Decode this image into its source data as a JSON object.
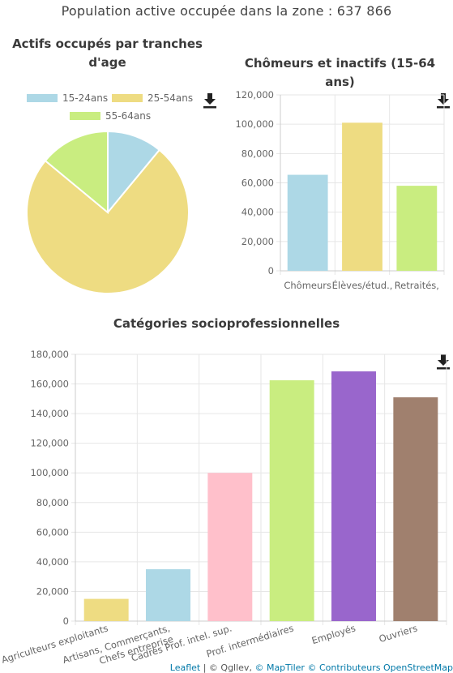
{
  "header": {
    "title": "Population active occupée dans la zone : 637 866"
  },
  "chart_data": [
    {
      "type": "pie",
      "title_line1": "Actifs occupés par tranches",
      "title_line2": "d'age",
      "categories": [
        "15-24ans",
        "25-54ans",
        "55-64ans"
      ],
      "values": [
        0.11,
        0.75,
        0.14
      ],
      "colors": [
        "#add8e6",
        "#eedc82",
        "#c9ed80"
      ],
      "legend_position": "top"
    },
    {
      "type": "bar",
      "title": "Chômeurs et inactifs (15-64 ans)",
      "categories": [
        "Chômeurs",
        "Élèves/étud.,",
        "Retraités,"
      ],
      "values": [
        65500,
        101000,
        58000
      ],
      "colors": [
        "#add8e6",
        "#eedc82",
        "#c9ed80"
      ],
      "ylim": [
        0,
        120000
      ],
      "yticks": [
        "0",
        "20,000",
        "40,000",
        "60,000",
        "80,000",
        "100,000",
        "120,000"
      ],
      "grid": true
    },
    {
      "type": "bar",
      "title": "Catégories socioprofessionnelles",
      "categories": [
        [
          "Agriculteurs exploitants"
        ],
        [
          "Artisans, Commerçants,",
          "Chefs entreprise"
        ],
        [
          "Cadres Prof. intel. sup."
        ],
        [
          "Prof. intermédiaires"
        ],
        [
          "Employés"
        ],
        [
          "Ouvriers"
        ]
      ],
      "values": [
        15000,
        35000,
        100000,
        162500,
        168500,
        151000
      ],
      "colors": [
        "#eedc82",
        "#add8e6",
        "#ffc0cb",
        "#c9ed80",
        "#9966cc",
        "#a0806e"
      ],
      "ylim": [
        0,
        180000
      ],
      "yticks": [
        "0",
        "20,000",
        "40,000",
        "60,000",
        "80,000",
        "100,000",
        "120,000",
        "140,000",
        "160,000",
        "180,000"
      ],
      "grid": true
    }
  ],
  "footer": {
    "leaflet": "Leaflet",
    "sep": " | © Qgllev, ",
    "maptiler": "© MapTiler",
    "osm": " © Contributeurs OpenStreetMap"
  }
}
